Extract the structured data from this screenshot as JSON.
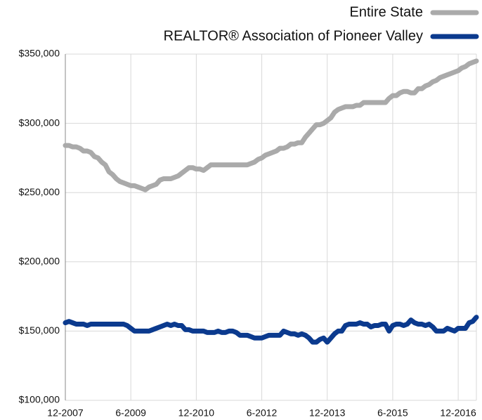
{
  "chart_data": {
    "type": "line",
    "categories": [
      "12-2007",
      null,
      null,
      null,
      null,
      null,
      null,
      null,
      null,
      null,
      null,
      null,
      null,
      null,
      null,
      null,
      null,
      null,
      "6-2009",
      null,
      null,
      null,
      null,
      null,
      null,
      null,
      null,
      null,
      null,
      null,
      null,
      null,
      null,
      null,
      null,
      null,
      "12-2010",
      null,
      null,
      null,
      null,
      null,
      null,
      null,
      null,
      null,
      null,
      null,
      null,
      null,
      null,
      null,
      null,
      null,
      "6-2012",
      null,
      null,
      null,
      null,
      null,
      null,
      null,
      null,
      null,
      null,
      null,
      null,
      null,
      null,
      null,
      null,
      null,
      "12-2013",
      null,
      null,
      null,
      null,
      null,
      null,
      null,
      null,
      null,
      null,
      null,
      null,
      null,
      null,
      null,
      null,
      null,
      "6-2015",
      null,
      null,
      null,
      null,
      null,
      null,
      null,
      null,
      null,
      null,
      null,
      null,
      null,
      null,
      null,
      null,
      null,
      "12-2016",
      null,
      null,
      null,
      null,
      null
    ],
    "series": [
      {
        "name": "Entire State",
        "color": "#aaaaaa",
        "values": [
          284000,
          284000,
          283000,
          283000,
          282000,
          280000,
          280000,
          279000,
          276000,
          275000,
          272000,
          270000,
          265000,
          263000,
          260000,
          258000,
          257000,
          256000,
          255000,
          255000,
          254000,
          253000,
          252000,
          254000,
          255000,
          256000,
          259000,
          260000,
          260000,
          260000,
          261000,
          262000,
          264000,
          266000,
          268000,
          268000,
          267000,
          267000,
          266000,
          268000,
          270000,
          270000,
          270000,
          270000,
          270000,
          270000,
          270000,
          270000,
          270000,
          270000,
          270000,
          271000,
          272000,
          274000,
          275000,
          277000,
          278000,
          279000,
          280000,
          282000,
          282000,
          283000,
          285000,
          285000,
          286000,
          286000,
          290000,
          293000,
          296000,
          299000,
          299000,
          300000,
          302000,
          304000,
          308000,
          310000,
          311000,
          312000,
          312000,
          312000,
          313000,
          313000,
          315000,
          315000,
          315000,
          315000,
          315000,
          315000,
          315000,
          318000,
          320000,
          320000,
          322000,
          323000,
          323000,
          322000,
          322000,
          325000,
          325000,
          327000,
          328000,
          330000,
          331000,
          333000,
          334000,
          335000,
          336000,
          337000,
          338000,
          340000,
          341000,
          343000,
          344000,
          345000
        ]
      },
      {
        "name": "REALTOR® Association of Pioneer Valley",
        "color": "#0b3a8e",
        "values": [
          156000,
          157000,
          156000,
          155000,
          155000,
          155000,
          154000,
          155000,
          155000,
          155000,
          155000,
          155000,
          155000,
          155000,
          155000,
          155000,
          155000,
          154000,
          152000,
          150000,
          150000,
          150000,
          150000,
          150000,
          151000,
          152000,
          153000,
          154000,
          155000,
          154000,
          155000,
          154000,
          154000,
          151000,
          151000,
          150000,
          150000,
          150000,
          150000,
          149000,
          149000,
          149000,
          150000,
          149000,
          149000,
          150000,
          150000,
          149000,
          147000,
          147000,
          147000,
          146000,
          145000,
          145000,
          145000,
          146000,
          147000,
          147000,
          147000,
          147000,
          150000,
          149000,
          148000,
          148000,
          147000,
          148000,
          147000,
          145000,
          142000,
          142000,
          144000,
          145000,
          142000,
          145000,
          148000,
          150000,
          150000,
          154000,
          155000,
          155000,
          155000,
          156000,
          155000,
          155000,
          153000,
          154000,
          154000,
          155000,
          155000,
          150000,
          154000,
          155000,
          155000,
          154000,
          155000,
          158000,
          156000,
          155000,
          155000,
          154000,
          155000,
          153000,
          150000,
          150000,
          150000,
          152000,
          151000,
          150000,
          152000,
          152000,
          152000,
          156000,
          157000,
          160000
        ]
      }
    ],
    "ylim": [
      100000,
      350000
    ],
    "yticks": [
      {
        "value": 100000,
        "label": "$100,000"
      },
      {
        "value": 150000,
        "label": "$150,000"
      },
      {
        "value": 200000,
        "label": "$200,000"
      },
      {
        "value": 250000,
        "label": "$250,000"
      },
      {
        "value": 300000,
        "label": "$300,000"
      },
      {
        "value": 350000,
        "label": "$350,000"
      }
    ],
    "grid": true,
    "legend": "top-right"
  }
}
